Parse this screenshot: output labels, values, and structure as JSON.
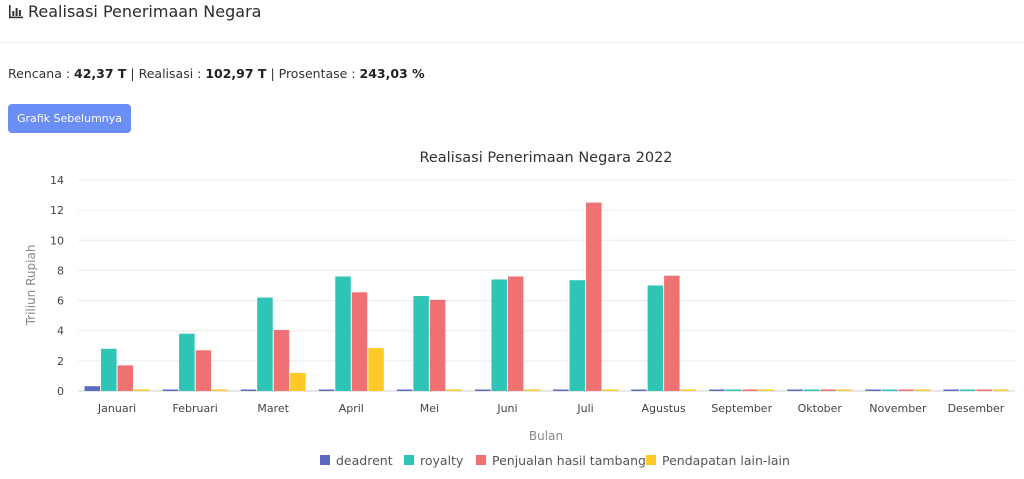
{
  "header": {
    "title": "Realisasi Penerimaan Negara",
    "icon": "bar-chart-icon"
  },
  "summary": {
    "rencana_label": "Rencana : ",
    "rencana_value": "42,37 T",
    "realisasi_label": " | Realisasi : ",
    "realisasi_value": "102,97 T",
    "prosentase_label": " | Prosentase : ",
    "prosentase_value": "243,03 %"
  },
  "button": {
    "label": "Grafik Sebelumnya"
  },
  "colors": {
    "deadrent": "#5c6bc0",
    "royalty": "#2ec4b6",
    "penjualan": "#f07171",
    "pendapatan": "#ffca28",
    "button": "#6b8df6"
  },
  "chart_data": {
    "type": "bar",
    "title": "Realisasi Penerimaan Negara 2022",
    "xlabel": "Bulan",
    "ylabel": "Triliun Rupiah",
    "ylim": [
      0,
      14
    ],
    "yticks": [
      0,
      2,
      4,
      6,
      8,
      10,
      12,
      14
    ],
    "grid": true,
    "legend": "bottom",
    "categories": [
      "Januari",
      "Februari",
      "Maret",
      "April",
      "Mei",
      "Juni",
      "Juli",
      "Agustus",
      "September",
      "Oktober",
      "November",
      "Desember"
    ],
    "series": [
      {
        "name": "deadrent",
        "color": "#5c6bc0",
        "values": [
          0.32,
          0.03,
          0.05,
          0.05,
          0.02,
          0.02,
          0.02,
          0.03,
          0,
          0,
          0,
          0
        ]
      },
      {
        "name": "royalty",
        "color": "#2ec4b6",
        "values": [
          2.8,
          3.8,
          6.2,
          7.6,
          6.3,
          7.4,
          7.35,
          7.0,
          0,
          0,
          0,
          0
        ]
      },
      {
        "name": "Penjualan hasil tambang",
        "color": "#f07171",
        "values": [
          1.7,
          2.7,
          4.05,
          6.55,
          6.05,
          7.6,
          12.5,
          7.65,
          0,
          0,
          0,
          0
        ]
      },
      {
        "name": "Pendapatan lain-lain",
        "color": "#ffca28",
        "values": [
          0,
          0,
          1.2,
          2.85,
          0.1,
          0.05,
          0.05,
          0.05,
          0,
          0,
          0,
          0
        ]
      }
    ]
  }
}
